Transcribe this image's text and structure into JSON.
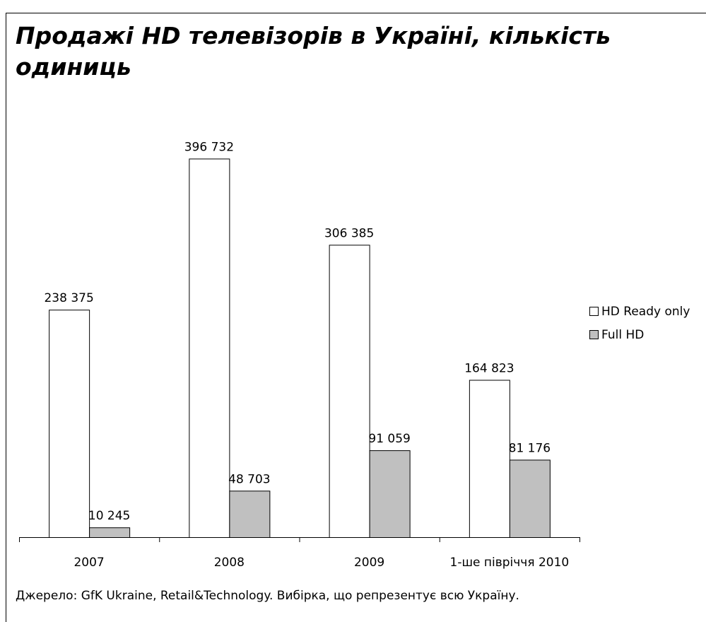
{
  "chart_data": {
    "type": "bar",
    "title": "Продажі HD телевізорів в Україні, кількість одиниць",
    "categories": [
      "2007",
      "2008",
      "2009",
      "1-ше півріччя 2010"
    ],
    "series": [
      {
        "name": "HD Ready only",
        "color": "#ffffff",
        "values": [
          238375,
          396732,
          306385,
          164823
        ],
        "value_labels": [
          "238 375",
          "396 732",
          "306 385",
          "164 823"
        ]
      },
      {
        "name": "Full HD",
        "color": "#c0c0c0",
        "values": [
          10245,
          48703,
          91059,
          81176
        ],
        "value_labels": [
          "10 245",
          "48 703",
          "91 059",
          "81 176"
        ]
      }
    ],
    "ylim": [
      0,
      400000
    ],
    "legend": "right",
    "source": "Джерело: GfK Ukraine, Retail&Technology. Вибірка, що репрезентує всю Україну."
  }
}
